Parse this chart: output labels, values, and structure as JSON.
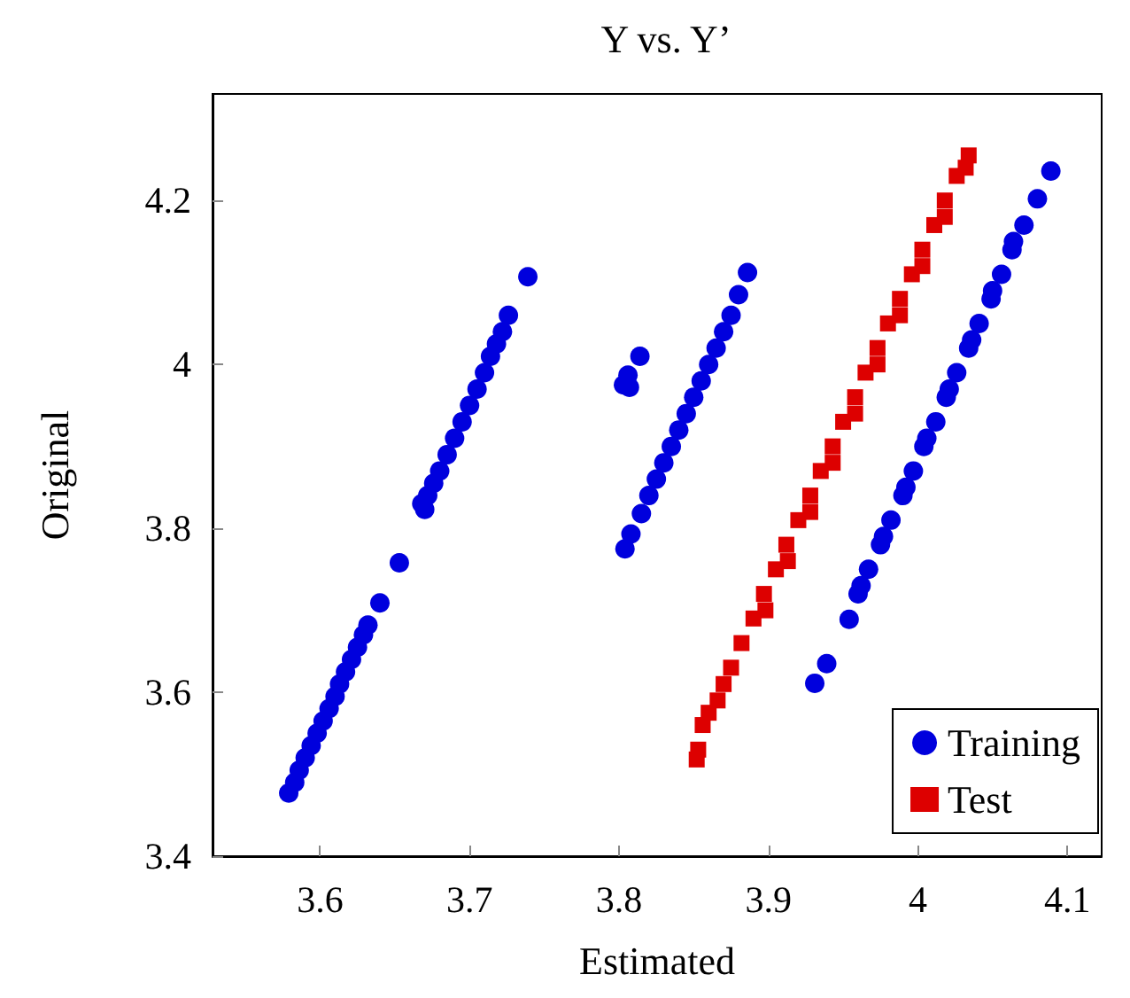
{
  "chart_data": {
    "type": "scatter",
    "title": "Y vs. Y’",
    "xlabel": "Estimated",
    "ylabel": "Original",
    "xlim": [
      3.528,
      4.123
    ],
    "xticks": [
      3.6,
      3.7,
      3.8,
      3.9,
      4,
      4.1
    ],
    "ylim": [
      3.4,
      4.33
    ],
    "yticks": [
      3.4,
      3.6,
      3.8,
      4,
      4.2
    ],
    "grid": false,
    "legend": "bottom right",
    "series": [
      {
        "name": "Training",
        "color": "#0000dd",
        "marker": "circle",
        "x": [
          3.579,
          3.583,
          3.586,
          3.59,
          3.594,
          3.598,
          3.602,
          3.606,
          3.61,
          3.613,
          3.617,
          3.621,
          3.625,
          3.629,
          3.632,
          3.64,
          3.653,
          3.67,
          3.668,
          3.672,
          3.676,
          3.68,
          3.685,
          3.69,
          3.695,
          3.7,
          3.705,
          3.71,
          3.714,
          3.718,
          3.722,
          3.726,
          3.739,
          3.804,
          3.808,
          3.803,
          3.807,
          3.806,
          3.814,
          3.815,
          3.82,
          3.825,
          3.83,
          3.835,
          3.84,
          3.845,
          3.85,
          3.855,
          3.86,
          3.865,
          3.87,
          3.875,
          3.88,
          3.886,
          3.931,
          3.939,
          3.954,
          3.96,
          3.967,
          3.975,
          3.982,
          3.99,
          3.997,
          4.004,
          4.012,
          4.019,
          4.026,
          4.034,
          4.041,
          4.049,
          4.056,
          4.063,
          4.071,
          4.08,
          4.089,
          3.962,
          3.977,
          3.992,
          4.006,
          4.021,
          4.036,
          4.05,
          4.064
        ],
        "values": [
          3.477,
          3.49,
          3.505,
          3.52,
          3.535,
          3.55,
          3.565,
          3.58,
          3.595,
          3.61,
          3.625,
          3.64,
          3.655,
          3.67,
          3.682,
          3.709,
          3.758,
          3.823,
          3.83,
          3.84,
          3.855,
          3.87,
          3.89,
          3.91,
          3.93,
          3.95,
          3.97,
          3.99,
          4.01,
          4.025,
          4.04,
          4.06,
          4.107,
          3.775,
          3.793,
          3.975,
          3.972,
          3.987,
          4.01,
          3.818,
          3.84,
          3.86,
          3.88,
          3.9,
          3.92,
          3.94,
          3.96,
          3.98,
          4.0,
          4.02,
          4.04,
          4.06,
          4.085,
          4.112,
          3.611,
          3.635,
          3.689,
          3.72,
          3.75,
          3.78,
          3.81,
          3.84,
          3.87,
          3.9,
          3.93,
          3.96,
          3.99,
          4.02,
          4.05,
          4.08,
          4.11,
          4.14,
          4.17,
          4.202,
          4.236,
          3.73,
          3.79,
          3.85,
          3.91,
          3.97,
          4.03,
          4.09,
          4.15
        ]
      },
      {
        "name": "Test",
        "color": "#dd0000",
        "marker": "square",
        "x": [
          3.852,
          3.853,
          3.856,
          3.86,
          3.866,
          3.87,
          3.875,
          3.882,
          3.89,
          3.897,
          3.905,
          3.912,
          3.92,
          3.928,
          3.935,
          3.943,
          3.95,
          3.958,
          3.965,
          3.973,
          3.98,
          3.988,
          3.996,
          4.003,
          4.011,
          4.018,
          4.026,
          4.034,
          3.898,
          3.913,
          3.928,
          3.943,
          3.958,
          3.973,
          3.988,
          4.003,
          4.018,
          4.032
        ],
        "values": [
          3.518,
          3.53,
          3.56,
          3.575,
          3.59,
          3.61,
          3.63,
          3.66,
          3.69,
          3.72,
          3.75,
          3.78,
          3.81,
          3.84,
          3.87,
          3.9,
          3.93,
          3.96,
          3.99,
          4.02,
          4.05,
          4.08,
          4.11,
          4.14,
          4.17,
          4.2,
          4.23,
          4.255,
          3.7,
          3.76,
          3.82,
          3.88,
          3.94,
          4.0,
          4.06,
          4.12,
          4.18,
          4.24
        ]
      }
    ]
  }
}
